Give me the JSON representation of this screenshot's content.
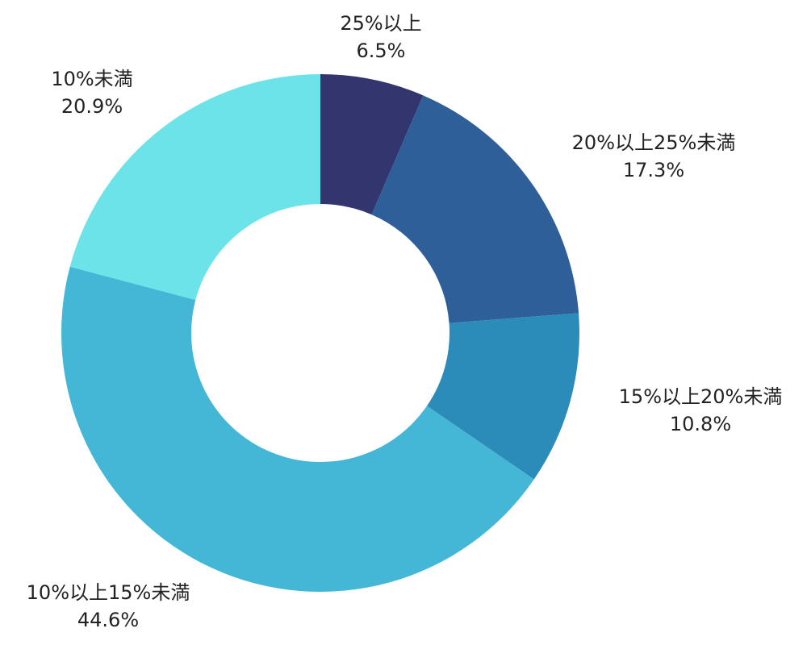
{
  "chart_data": {
    "type": "pie",
    "donut": true,
    "start_angle_deg": 0,
    "direction": "clockwise",
    "slices": [
      {
        "label": "25%以上",
        "value": 6.5,
        "value_text": "6.5%",
        "color": "#32356e"
      },
      {
        "label": "20%以上25%未満",
        "value": 17.3,
        "value_text": "17.3%",
        "color": "#2f5f99"
      },
      {
        "label": "15%以上20%未満",
        "value": 10.8,
        "value_text": "10.8%",
        "color": "#2b8bb9"
      },
      {
        "label": "10%以上15%未満",
        "value": 44.6,
        "value_text": "44.6%",
        "color": "#44b7d6"
      },
      {
        "label": "10%未満",
        "value": 20.9,
        "value_text": "20.9%",
        "color": "#6ce3e8"
      }
    ],
    "legend": "none"
  }
}
